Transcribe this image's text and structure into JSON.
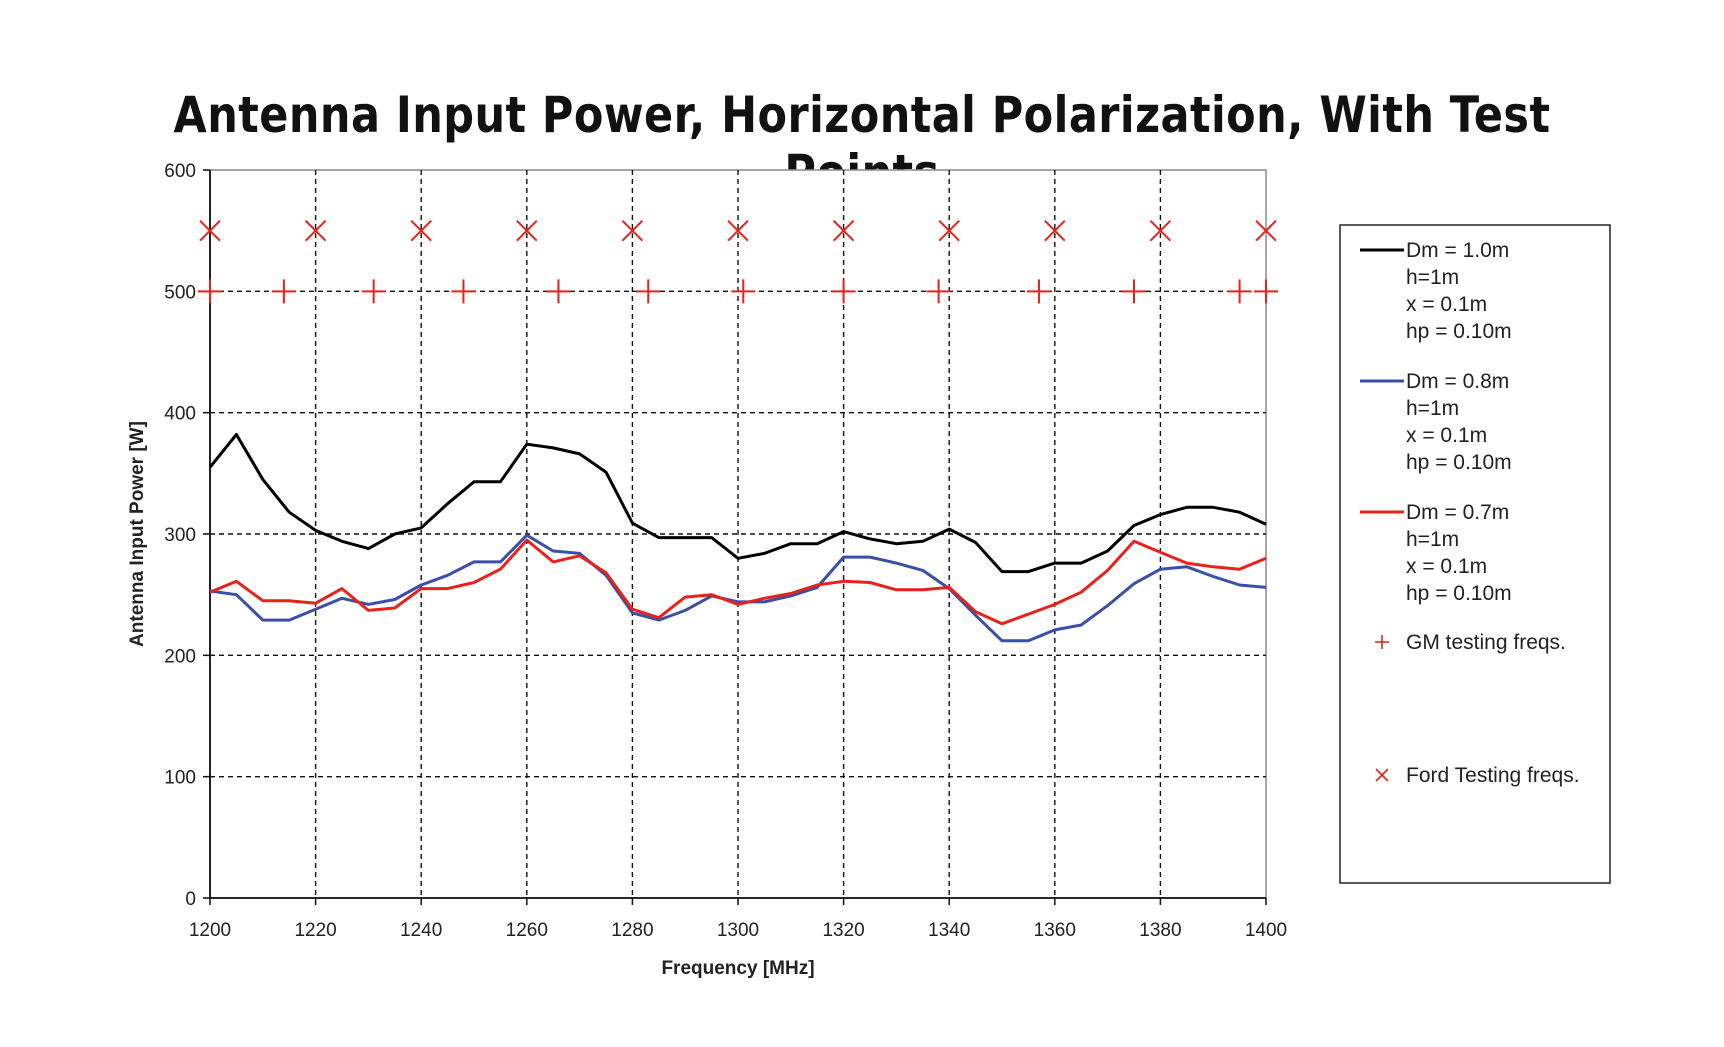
{
  "chart_data": {
    "type": "line",
    "title": "Antenna Input Power, Horizontal Polarization, With Test Points",
    "xlabel": "Frequency [MHz]",
    "ylabel": "Antenna Input Power [W]",
    "xlim": [
      1200,
      1400
    ],
    "ylim": [
      0,
      600
    ],
    "x_ticks": [
      1200,
      1220,
      1240,
      1260,
      1280,
      1300,
      1320,
      1340,
      1360,
      1380,
      1400
    ],
    "y_ticks": [
      0,
      100,
      200,
      300,
      400,
      500,
      600
    ],
    "grid": true,
    "legend_position": "right",
    "series": [
      {
        "legend": [
          "Dm = 1.0m",
          "h=1m",
          "x = 0.1m",
          "hp = 0.10m"
        ],
        "color": "#000000",
        "x": [
          1200,
          1205,
          1210,
          1215,
          1220,
          1225,
          1230,
          1235,
          1240,
          1245,
          1250,
          1255,
          1260,
          1265,
          1270,
          1275,
          1280,
          1285,
          1290,
          1295,
          1300,
          1305,
          1310,
          1315,
          1320,
          1325,
          1330,
          1335,
          1340,
          1345,
          1350,
          1355,
          1360,
          1365,
          1370,
          1375,
          1380,
          1385,
          1390,
          1395,
          1400
        ],
        "y": [
          355,
          382,
          345,
          318,
          303,
          294,
          288,
          300,
          305,
          325,
          343,
          343,
          374,
          371,
          366,
          351,
          309,
          297,
          297,
          297,
          280,
          284,
          292,
          292,
          302,
          296,
          292,
          294,
          304,
          293,
          269,
          269,
          276,
          276,
          286,
          307,
          316,
          322,
          322,
          318,
          308
        ]
      },
      {
        "legend": [
          "Dm = 0.8m",
          "h=1m",
          "x = 0.1m",
          "hp = 0.10m"
        ],
        "color": "#3a4fa8",
        "x": [
          1200,
          1205,
          1210,
          1215,
          1220,
          1225,
          1230,
          1235,
          1240,
          1245,
          1250,
          1255,
          1260,
          1265,
          1270,
          1275,
          1280,
          1285,
          1290,
          1295,
          1300,
          1305,
          1310,
          1315,
          1320,
          1325,
          1330,
          1335,
          1340,
          1345,
          1350,
          1355,
          1360,
          1365,
          1370,
          1375,
          1380,
          1385,
          1390,
          1395,
          1400
        ],
        "y": [
          253,
          250,
          229,
          229,
          238,
          247,
          242,
          246,
          258,
          266,
          277,
          277,
          299,
          286,
          284,
          266,
          235,
          229,
          237,
          249,
          244,
          244,
          249,
          256,
          281,
          281,
          276,
          270,
          255,
          233,
          212,
          212,
          221,
          225,
          241,
          259,
          271,
          273,
          265,
          258,
          256
        ]
      },
      {
        "legend": [
          "Dm = 0.7m",
          "h=1m",
          "x = 0.1m",
          "hp = 0.10m"
        ],
        "color": "#e8211a",
        "x": [
          1200,
          1205,
          1210,
          1215,
          1220,
          1225,
          1230,
          1235,
          1240,
          1245,
          1250,
          1255,
          1260,
          1265,
          1270,
          1275,
          1280,
          1285,
          1290,
          1295,
          1300,
          1305,
          1310,
          1315,
          1320,
          1325,
          1330,
          1335,
          1340,
          1345,
          1350,
          1355,
          1360,
          1365,
          1370,
          1375,
          1380,
          1385,
          1390,
          1395,
          1400
        ],
        "y": [
          252,
          261,
          245,
          245,
          243,
          255,
          237,
          239,
          255,
          255,
          260,
          271,
          295,
          277,
          282,
          268,
          238,
          231,
          248,
          250,
          242,
          247,
          251,
          258,
          261,
          260,
          254,
          254,
          256,
          236,
          226,
          234,
          242,
          252,
          270,
          294,
          285,
          276,
          273,
          271,
          280
        ]
      },
      {
        "legend": [
          "GM testing freqs."
        ],
        "color": "#e8211a",
        "marker": "+",
        "x": [
          1200,
          1214,
          1231,
          1248,
          1266,
          1283,
          1301,
          1320,
          1338,
          1357,
          1375,
          1395,
          1400
        ],
        "y": [
          500,
          500,
          500,
          500,
          500,
          500,
          500,
          500,
          500,
          500,
          500,
          500,
          500
        ]
      },
      {
        "legend": [
          "Ford Testing freqs."
        ],
        "color": "#e8211a",
        "marker": "x",
        "x": [
          1200,
          1220,
          1240,
          1260,
          1280,
          1300,
          1320,
          1340,
          1360,
          1380,
          1400
        ],
        "y": [
          550,
          550,
          550,
          550,
          550,
          550,
          550,
          550,
          550,
          550,
          550
        ]
      }
    ]
  }
}
